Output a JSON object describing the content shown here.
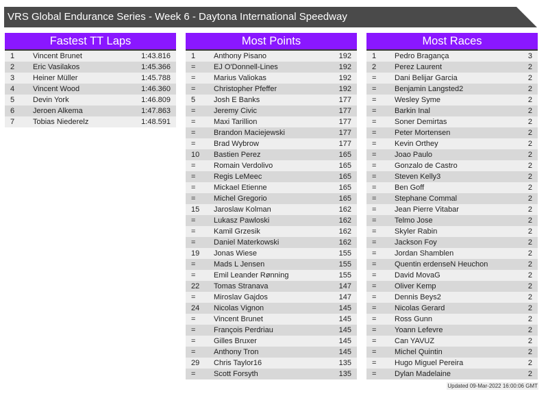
{
  "title": "VRS Global Endurance Series - Week 6 - Daytona International Speedway",
  "panels": [
    {
      "heading": "Fastest TT Laps",
      "rows": [
        [
          "1",
          "Vincent Brunet",
          "1:43.816"
        ],
        [
          "2",
          "Eric Vasilakos",
          "1:45.366"
        ],
        [
          "3",
          "Heiner Müller",
          "1:45.788"
        ],
        [
          "4",
          "Vincent Wood",
          "1:46.360"
        ],
        [
          "5",
          "Devin York",
          "1:46.809"
        ],
        [
          "6",
          "Jeroen Alkema",
          "1:47.863"
        ],
        [
          "7",
          "Tobias Niederelz",
          "1:48.591"
        ]
      ]
    },
    {
      "heading": "Most Points",
      "rows": [
        [
          "1",
          "Anthony Pisano",
          "192"
        ],
        [
          "=",
          "EJ O'Donnell-Lines",
          "192"
        ],
        [
          "=",
          "Marius Valiokas",
          "192"
        ],
        [
          "=",
          "Christopher Pfeffer",
          "192"
        ],
        [
          "5",
          "Josh E Banks",
          "177"
        ],
        [
          "=",
          "Jeremy Civic",
          "177"
        ],
        [
          "=",
          "Maxi Tarillion",
          "177"
        ],
        [
          "=",
          "Brandon Maciejewski",
          "177"
        ],
        [
          "=",
          "Brad Wybrow",
          "177"
        ],
        [
          "10",
          "Bastien Perez",
          "165"
        ],
        [
          "=",
          "Romain Verdolivo",
          "165"
        ],
        [
          "=",
          "Regis LeMeec",
          "165"
        ],
        [
          "=",
          "Mickael Etienne",
          "165"
        ],
        [
          "=",
          "Michel Gregorio",
          "165"
        ],
        [
          "15",
          "Jaroslaw Kolman",
          "162"
        ],
        [
          "=",
          "Lukasz Pawloski",
          "162"
        ],
        [
          "=",
          "Kamil Grzesik",
          "162"
        ],
        [
          "=",
          "Daniel Materkowski",
          "162"
        ],
        [
          "19",
          "Jonas Wiese",
          "155"
        ],
        [
          "=",
          "Mads L Jensen",
          "155"
        ],
        [
          "=",
          "Emil Leander Rønning",
          "155"
        ],
        [
          "22",
          "Tomas Stranava",
          "147"
        ],
        [
          "=",
          "Miroslav Gajdos",
          "147"
        ],
        [
          "24",
          "Nicolas Vignon",
          "145"
        ],
        [
          "=",
          "Vincent Brunet",
          "145"
        ],
        [
          "=",
          "François Perdriau",
          "145"
        ],
        [
          "=",
          "Gilles Bruxer",
          "145"
        ],
        [
          "=",
          "Anthony Tron",
          "145"
        ],
        [
          "29",
          "Chris Taylor16",
          "135"
        ],
        [
          "=",
          "Scott Forsyth",
          "135"
        ]
      ]
    },
    {
      "heading": "Most Races",
      "rows": [
        [
          "1",
          "Pedro Bragança",
          "3"
        ],
        [
          "2",
          "Perez Laurent",
          "2"
        ],
        [
          "=",
          "Dani Belijar Garcia",
          "2"
        ],
        [
          "=",
          "Benjamin Langsted2",
          "2"
        ],
        [
          "=",
          "Wesley Syme",
          "2"
        ],
        [
          "=",
          "Barkin Inal",
          "2"
        ],
        [
          "=",
          "Soner Demirtas",
          "2"
        ],
        [
          "=",
          "Peter Mortensen",
          "2"
        ],
        [
          "=",
          "Kevin Orthey",
          "2"
        ],
        [
          "=",
          "Joao Paulo",
          "2"
        ],
        [
          "=",
          "Gonzalo de Castro",
          "2"
        ],
        [
          "=",
          "Steven Kelly3",
          "2"
        ],
        [
          "=",
          "Ben Goff",
          "2"
        ],
        [
          "=",
          "Stephane Commal",
          "2"
        ],
        [
          "=",
          "Jean Pierre Vitabar",
          "2"
        ],
        [
          "=",
          "Telmo Jose",
          "2"
        ],
        [
          "=",
          "Skyler Rabin",
          "2"
        ],
        [
          "=",
          "Jackson Foy",
          "2"
        ],
        [
          "=",
          "Jordan Shamblen",
          "2"
        ],
        [
          "=",
          "Quentin erdenseN Heuchon",
          "2"
        ],
        [
          "=",
          "David MovaG",
          "2"
        ],
        [
          "=",
          "Oliver Kemp",
          "2"
        ],
        [
          "=",
          "Dennis Beys2",
          "2"
        ],
        [
          "=",
          "Nicolas Gerard",
          "2"
        ],
        [
          "=",
          "Ross Gunn",
          "2"
        ],
        [
          "=",
          "Yoann Lefevre",
          "2"
        ],
        [
          "=",
          "Can YAVUZ",
          "2"
        ],
        [
          "=",
          "Michel Quintin",
          "2"
        ],
        [
          "=",
          "Hugo Miguel Pereira",
          "2"
        ],
        [
          "=",
          "Dylan Madelaine",
          "2"
        ]
      ]
    }
  ],
  "footer": "Updated 09-Mar-2022 16:00:06 GMT",
  "colors": {
    "header": "#8a17ff",
    "title_bar": "#4a4a4a"
  }
}
